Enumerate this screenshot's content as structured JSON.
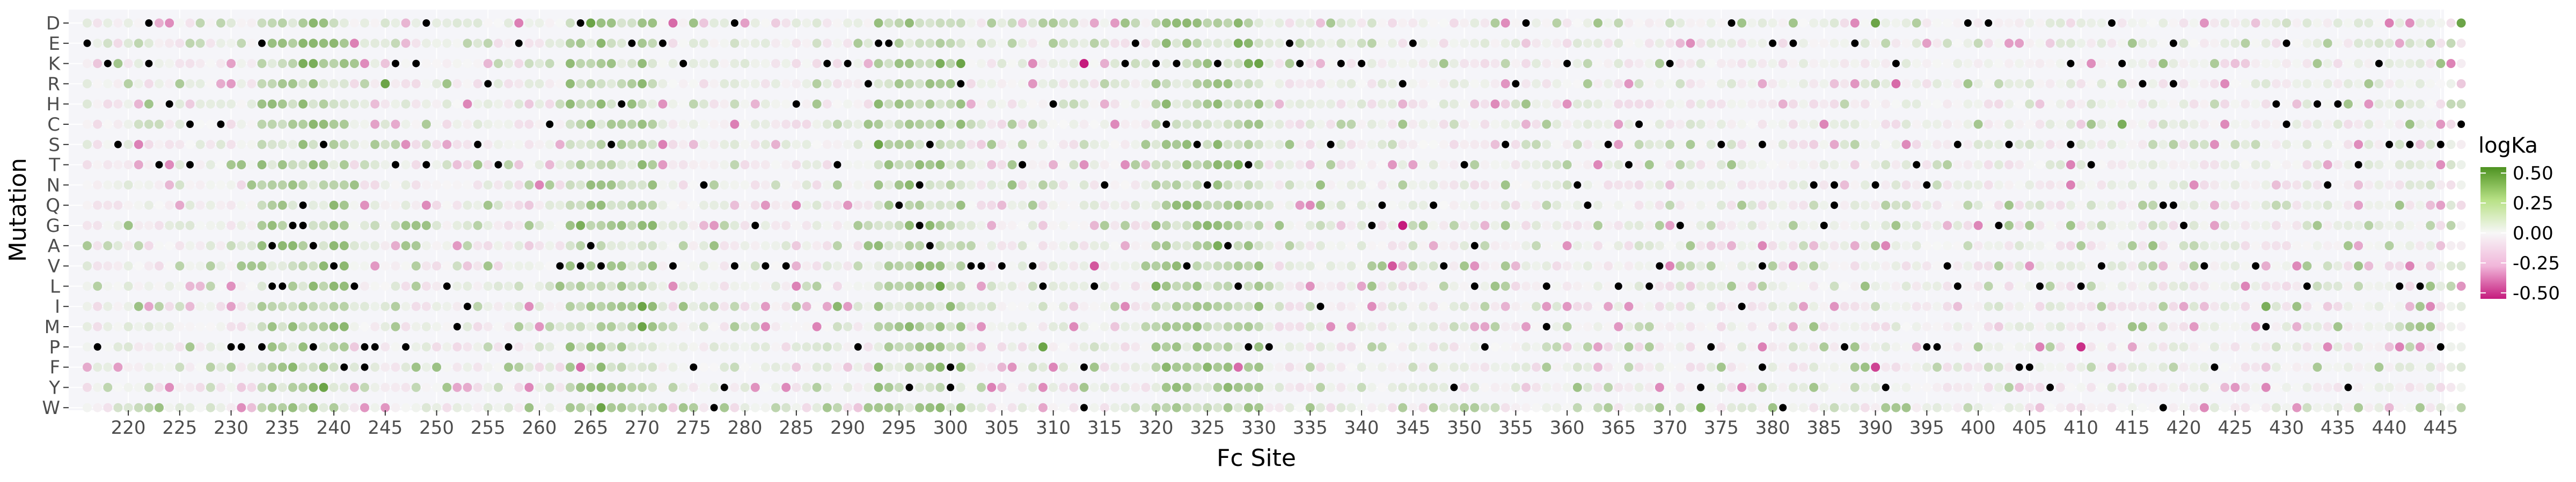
{
  "chart_data": {
    "type": "heatmap",
    "mark": "dot",
    "xlabel": "Fc Site",
    "ylabel": "Mutation",
    "x_range": [
      216,
      447
    ],
    "x_ticks": [
      220,
      225,
      230,
      235,
      240,
      245,
      250,
      255,
      260,
      265,
      270,
      275,
      280,
      285,
      290,
      295,
      300,
      305,
      310,
      315,
      320,
      325,
      330,
      335,
      340,
      345,
      350,
      355,
      360,
      365,
      370,
      375,
      380,
      385,
      390,
      395,
      400,
      405,
      410,
      415,
      420,
      425,
      430,
      435,
      440,
      445
    ],
    "y_categories": [
      "D",
      "E",
      "K",
      "R",
      "H",
      "C",
      "S",
      "T",
      "N",
      "Q",
      "G",
      "A",
      "V",
      "L",
      "I",
      "M",
      "P",
      "F",
      "Y",
      "W"
    ],
    "panel_background": "#f5f5f9",
    "wildtype_color": "#000000",
    "legend": {
      "title": "logKa",
      "position": "right",
      "limits": [
        -0.55,
        0.55
      ],
      "breaks": [
        0.5,
        0.25,
        0.0,
        -0.25,
        -0.5
      ],
      "break_labels": [
        "0.50",
        "0.25",
        "0.00",
        "-0.25",
        "-0.50"
      ],
      "colors": {
        "low": "#c51b7d",
        "mid": "#f7f7f7",
        "high": "#4d9221"
      }
    },
    "wildtype": [
      {
        "mutation": "D",
        "site": 222
      },
      {
        "mutation": "D",
        "site": 249
      },
      {
        "mutation": "D",
        "site": 264
      },
      {
        "mutation": "D",
        "site": 279
      },
      {
        "mutation": "D",
        "site": 356
      },
      {
        "mutation": "D",
        "site": 376
      },
      {
        "mutation": "D",
        "site": 399
      },
      {
        "mutation": "D",
        "site": 401
      },
      {
        "mutation": "D",
        "site": 413
      },
      {
        "mutation": "E",
        "site": 216
      },
      {
        "mutation": "E",
        "site": 233
      },
      {
        "mutation": "E",
        "site": 258
      },
      {
        "mutation": "E",
        "site": 269
      },
      {
        "mutation": "E",
        "site": 272
      },
      {
        "mutation": "E",
        "site": 293
      },
      {
        "mutation": "E",
        "site": 294
      },
      {
        "mutation": "E",
        "site": 318
      },
      {
        "mutation": "E",
        "site": 333
      },
      {
        "mutation": "E",
        "site": 345
      },
      {
        "mutation": "E",
        "site": 380
      },
      {
        "mutation": "E",
        "site": 382
      },
      {
        "mutation": "E",
        "site": 388
      },
      {
        "mutation": "E",
        "site": 419
      },
      {
        "mutation": "E",
        "site": 430
      },
      {
        "mutation": "K",
        "site": 218
      },
      {
        "mutation": "K",
        "site": 222
      },
      {
        "mutation": "K",
        "site": 246
      },
      {
        "mutation": "K",
        "site": 248
      },
      {
        "mutation": "K",
        "site": 274
      },
      {
        "mutation": "K",
        "site": 288
      },
      {
        "mutation": "K",
        "site": 290
      },
      {
        "mutation": "K",
        "site": 317
      },
      {
        "mutation": "K",
        "site": 320
      },
      {
        "mutation": "K",
        "site": 322
      },
      {
        "mutation": "K",
        "site": 326
      },
      {
        "mutation": "K",
        "site": 334
      },
      {
        "mutation": "K",
        "site": 338
      },
      {
        "mutation": "K",
        "site": 340
      },
      {
        "mutation": "K",
        "site": 360
      },
      {
        "mutation": "K",
        "site": 370
      },
      {
        "mutation": "K",
        "site": 392
      },
      {
        "mutation": "K",
        "site": 409
      },
      {
        "mutation": "K",
        "site": 414
      },
      {
        "mutation": "K",
        "site": 439
      },
      {
        "mutation": "R",
        "site": 255
      },
      {
        "mutation": "R",
        "site": 292
      },
      {
        "mutation": "R",
        "site": 301
      },
      {
        "mutation": "R",
        "site": 344
      },
      {
        "mutation": "R",
        "site": 355
      },
      {
        "mutation": "R",
        "site": 416
      },
      {
        "mutation": "R",
        "site": 419
      },
      {
        "mutation": "H",
        "site": 224
      },
      {
        "mutation": "H",
        "site": 268
      },
      {
        "mutation": "H",
        "site": 285
      },
      {
        "mutation": "H",
        "site": 310
      },
      {
        "mutation": "H",
        "site": 429
      },
      {
        "mutation": "H",
        "site": 433
      },
      {
        "mutation": "H",
        "site": 435
      },
      {
        "mutation": "C",
        "site": 226
      },
      {
        "mutation": "C",
        "site": 229
      },
      {
        "mutation": "C",
        "site": 261
      },
      {
        "mutation": "C",
        "site": 321
      },
      {
        "mutation": "C",
        "site": 367
      },
      {
        "mutation": "C",
        "site": 430
      },
      {
        "mutation": "C",
        "site": 447
      },
      {
        "mutation": "S",
        "site": 219
      },
      {
        "mutation": "S",
        "site": 239
      },
      {
        "mutation": "S",
        "site": 254
      },
      {
        "mutation": "S",
        "site": 267
      },
      {
        "mutation": "S",
        "site": 298
      },
      {
        "mutation": "S",
        "site": 324
      },
      {
        "mutation": "S",
        "site": 337
      },
      {
        "mutation": "S",
        "site": 354
      },
      {
        "mutation": "S",
        "site": 364
      },
      {
        "mutation": "S",
        "site": 375
      },
      {
        "mutation": "S",
        "site": 379
      },
      {
        "mutation": "S",
        "site": 398
      },
      {
        "mutation": "S",
        "site": 403
      },
      {
        "mutation": "S",
        "site": 409
      },
      {
        "mutation": "S",
        "site": 440
      },
      {
        "mutation": "S",
        "site": 442
      },
      {
        "mutation": "S",
        "site": 445
      },
      {
        "mutation": "T",
        "site": 223
      },
      {
        "mutation": "T",
        "site": 226
      },
      {
        "mutation": "T",
        "site": 246
      },
      {
        "mutation": "T",
        "site": 249
      },
      {
        "mutation": "T",
        "site": 256
      },
      {
        "mutation": "T",
        "site": 289
      },
      {
        "mutation": "T",
        "site": 307
      },
      {
        "mutation": "T",
        "site": 329
      },
      {
        "mutation": "T",
        "site": 350
      },
      {
        "mutation": "T",
        "site": 366
      },
      {
        "mutation": "T",
        "site": 394
      },
      {
        "mutation": "T",
        "site": 411
      },
      {
        "mutation": "T",
        "site": 437
      },
      {
        "mutation": "N",
        "site": 276
      },
      {
        "mutation": "N",
        "site": 297
      },
      {
        "mutation": "N",
        "site": 315
      },
      {
        "mutation": "N",
        "site": 325
      },
      {
        "mutation": "N",
        "site": 361
      },
      {
        "mutation": "N",
        "site": 384
      },
      {
        "mutation": "N",
        "site": 386
      },
      {
        "mutation": "N",
        "site": 390
      },
      {
        "mutation": "N",
        "site": 395
      },
      {
        "mutation": "N",
        "site": 434
      },
      {
        "mutation": "Q",
        "site": 237
      },
      {
        "mutation": "Q",
        "site": 295
      },
      {
        "mutation": "Q",
        "site": 342
      },
      {
        "mutation": "Q",
        "site": 347
      },
      {
        "mutation": "Q",
        "site": 362
      },
      {
        "mutation": "Q",
        "site": 386
      },
      {
        "mutation": "Q",
        "site": 418
      },
      {
        "mutation": "Q",
        "site": 419
      },
      {
        "mutation": "G",
        "site": 236
      },
      {
        "mutation": "G",
        "site": 237
      },
      {
        "mutation": "G",
        "site": 281
      },
      {
        "mutation": "G",
        "site": 297
      },
      {
        "mutation": "G",
        "site": 341
      },
      {
        "mutation": "G",
        "site": 371
      },
      {
        "mutation": "G",
        "site": 385
      },
      {
        "mutation": "G",
        "site": 402
      },
      {
        "mutation": "G",
        "site": 420
      },
      {
        "mutation": "A",
        "site": 234
      },
      {
        "mutation": "A",
        "site": 238
      },
      {
        "mutation": "A",
        "site": 265
      },
      {
        "mutation": "A",
        "site": 298
      },
      {
        "mutation": "A",
        "site": 327
      },
      {
        "mutation": "A",
        "site": 351
      },
      {
        "mutation": "V",
        "site": 240
      },
      {
        "mutation": "V",
        "site": 262
      },
      {
        "mutation": "V",
        "site": 264
      },
      {
        "mutation": "V",
        "site": 266
      },
      {
        "mutation": "V",
        "site": 273
      },
      {
        "mutation": "V",
        "site": 279
      },
      {
        "mutation": "V",
        "site": 282
      },
      {
        "mutation": "V",
        "site": 284
      },
      {
        "mutation": "V",
        "site": 302
      },
      {
        "mutation": "V",
        "site": 303
      },
      {
        "mutation": "V",
        "site": 305
      },
      {
        "mutation": "V",
        "site": 308
      },
      {
        "mutation": "V",
        "site": 323
      },
      {
        "mutation": "V",
        "site": 348
      },
      {
        "mutation": "V",
        "site": 369
      },
      {
        "mutation": "V",
        "site": 379
      },
      {
        "mutation": "V",
        "site": 397
      },
      {
        "mutation": "V",
        "site": 412
      },
      {
        "mutation": "V",
        "site": 422
      },
      {
        "mutation": "V",
        "site": 427
      },
      {
        "mutation": "L",
        "site": 234
      },
      {
        "mutation": "L",
        "site": 235
      },
      {
        "mutation": "L",
        "site": 242
      },
      {
        "mutation": "L",
        "site": 251
      },
      {
        "mutation": "L",
        "site": 309
      },
      {
        "mutation": "L",
        "site": 314
      },
      {
        "mutation": "L",
        "site": 328
      },
      {
        "mutation": "L",
        "site": 351
      },
      {
        "mutation": "L",
        "site": 358
      },
      {
        "mutation": "L",
        "site": 365
      },
      {
        "mutation": "L",
        "site": 368
      },
      {
        "mutation": "L",
        "site": 398
      },
      {
        "mutation": "L",
        "site": 406
      },
      {
        "mutation": "L",
        "site": 410
      },
      {
        "mutation": "L",
        "site": 432
      },
      {
        "mutation": "L",
        "site": 441
      },
      {
        "mutation": "L",
        "site": 443
      },
      {
        "mutation": "I",
        "site": 253
      },
      {
        "mutation": "I",
        "site": 336
      },
      {
        "mutation": "I",
        "site": 377
      },
      {
        "mutation": "M",
        "site": 252
      },
      {
        "mutation": "M",
        "site": 358
      },
      {
        "mutation": "M",
        "site": 428
      },
      {
        "mutation": "P",
        "site": 217
      },
      {
        "mutation": "P",
        "site": 230
      },
      {
        "mutation": "P",
        "site": 231
      },
      {
        "mutation": "P",
        "site": 233
      },
      {
        "mutation": "P",
        "site": 238
      },
      {
        "mutation": "P",
        "site": 243
      },
      {
        "mutation": "P",
        "site": 244
      },
      {
        "mutation": "P",
        "site": 247
      },
      {
        "mutation": "P",
        "site": 257
      },
      {
        "mutation": "P",
        "site": 291
      },
      {
        "mutation": "P",
        "site": 329
      },
      {
        "mutation": "P",
        "site": 331
      },
      {
        "mutation": "P",
        "site": 352
      },
      {
        "mutation": "P",
        "site": 374
      },
      {
        "mutation": "P",
        "site": 387
      },
      {
        "mutation": "P",
        "site": 395
      },
      {
        "mutation": "P",
        "site": 396
      },
      {
        "mutation": "P",
        "site": 445
      },
      {
        "mutation": "F",
        "site": 241
      },
      {
        "mutation": "F",
        "site": 243
      },
      {
        "mutation": "F",
        "site": 275
      },
      {
        "mutation": "F",
        "site": 300
      },
      {
        "mutation": "F",
        "site": 313
      },
      {
        "mutation": "F",
        "site": 379
      },
      {
        "mutation": "F",
        "site": 404
      },
      {
        "mutation": "F",
        "site": 405
      },
      {
        "mutation": "F",
        "site": 423
      },
      {
        "mutation": "Y",
        "site": 278
      },
      {
        "mutation": "Y",
        "site": 296
      },
      {
        "mutation": "Y",
        "site": 300
      },
      {
        "mutation": "Y",
        "site": 349
      },
      {
        "mutation": "Y",
        "site": 373
      },
      {
        "mutation": "Y",
        "site": 391
      },
      {
        "mutation": "Y",
        "site": 407
      },
      {
        "mutation": "Y",
        "site": 436
      },
      {
        "mutation": "W",
        "site": 277
      },
      {
        "mutation": "W",
        "site": 313
      },
      {
        "mutation": "W",
        "site": 381
      },
      {
        "mutation": "W",
        "site": 418
      }
    ],
    "notable": [
      {
        "mutation": "D",
        "site": 238,
        "value": 0.35
      },
      {
        "mutation": "D",
        "site": 239,
        "value": 0.3
      },
      {
        "mutation": "D",
        "site": 265,
        "value": 0.45
      },
      {
        "mutation": "D",
        "site": 266,
        "value": 0.3
      },
      {
        "mutation": "D",
        "site": 258,
        "value": -0.3
      },
      {
        "mutation": "D",
        "site": 273,
        "value": -0.35
      },
      {
        "mutation": "D",
        "site": 328,
        "value": 0.35
      },
      {
        "mutation": "D",
        "site": 390,
        "value": 0.45
      },
      {
        "mutation": "D",
        "site": 447,
        "value": 0.45
      },
      {
        "mutation": "D",
        "site": 440,
        "value": -0.3
      },
      {
        "mutation": "E",
        "site": 237,
        "value": 0.35
      },
      {
        "mutation": "E",
        "site": 238,
        "value": 0.35
      },
      {
        "mutation": "E",
        "site": 266,
        "value": 0.35
      },
      {
        "mutation": "E",
        "site": 328,
        "value": 0.4
      },
      {
        "mutation": "E",
        "site": 329,
        "value": 0.35
      },
      {
        "mutation": "K",
        "site": 237,
        "value": 0.4
      },
      {
        "mutation": "K",
        "site": 238,
        "value": 0.4
      },
      {
        "mutation": "K",
        "site": 299,
        "value": 0.4
      },
      {
        "mutation": "K",
        "site": 301,
        "value": 0.45
      },
      {
        "mutation": "K",
        "site": 313,
        "value": -0.55
      },
      {
        "mutation": "K",
        "site": 329,
        "value": 0.4
      },
      {
        "mutation": "K",
        "site": 330,
        "value": 0.45
      },
      {
        "mutation": "R",
        "site": 245,
        "value": 0.45
      },
      {
        "mutation": "R",
        "site": 301,
        "value": 0.4
      },
      {
        "mutation": "R",
        "site": 392,
        "value": -0.35
      },
      {
        "mutation": "S",
        "site": 293,
        "value": 0.45
      },
      {
        "mutation": "S",
        "site": 326,
        "value": 0.35
      },
      {
        "mutation": "T",
        "site": 328,
        "value": 0.4
      },
      {
        "mutation": "C",
        "site": 414,
        "value": 0.4
      },
      {
        "mutation": "N",
        "site": 296,
        "value": 0.35
      },
      {
        "mutation": "G",
        "site": 264,
        "value": 0.4
      },
      {
        "mutation": "G",
        "site": 344,
        "value": -0.55
      },
      {
        "mutation": "G",
        "site": 271,
        "value": 0.35
      },
      {
        "mutation": "A",
        "site": 326,
        "value": 0.4
      },
      {
        "mutation": "V",
        "site": 314,
        "value": -0.4
      },
      {
        "mutation": "V",
        "site": 343,
        "value": -0.4
      },
      {
        "mutation": "L",
        "site": 299,
        "value": 0.45
      },
      {
        "mutation": "L",
        "site": 320,
        "value": 0.4
      },
      {
        "mutation": "I",
        "site": 270,
        "value": 0.45
      },
      {
        "mutation": "I",
        "site": 289,
        "value": 0.35
      },
      {
        "mutation": "I",
        "site": 428,
        "value": 0.4
      },
      {
        "mutation": "M",
        "site": 270,
        "value": 0.45
      },
      {
        "mutation": "P",
        "site": 309,
        "value": 0.45
      },
      {
        "mutation": "P",
        "site": 410,
        "value": -0.5
      },
      {
        "mutation": "F",
        "site": 264,
        "value": -0.35
      },
      {
        "mutation": "F",
        "site": 390,
        "value": -0.45
      },
      {
        "mutation": "F",
        "site": 328,
        "value": -0.35
      },
      {
        "mutation": "Y",
        "site": 239,
        "value": 0.45
      },
      {
        "mutation": "Y",
        "site": 238,
        "value": 0.35
      },
      {
        "mutation": "W",
        "site": 266,
        "value": 0.45
      },
      {
        "mutation": "W",
        "site": 373,
        "value": 0.4
      }
    ],
    "background_values": "all remaining site/mutation combinations carry small logKa values (about -0.3 to 0.3), with more positive (green) values concentrated at sites 233-241, 263-271, 293-301 and 320-330"
  }
}
